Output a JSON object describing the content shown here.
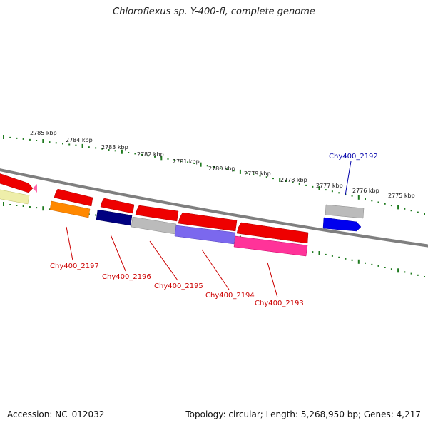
{
  "title": "Chloroflexus sp. Y-400-fl, complete genome",
  "footer": {
    "accession": "Accession: NC_012032",
    "topology": "Topology: circular; Length: 5,268,950 bp; Genes: 4,217"
  },
  "ticks": [
    "2785 kbp",
    "2784 kbp",
    "2783 kbp",
    "2782 kbp",
    "2781 kbp",
    "2780 kbp",
    "2779 kbp",
    "2778 kbp",
    "2777 kbp",
    "2776 kbp",
    "2775 kbp"
  ],
  "gene_labels": [
    {
      "text": "Chy400_2197",
      "color": "#cc0000"
    },
    {
      "text": "Chy400_2196",
      "color": "#cc0000"
    },
    {
      "text": "Chy400_2195",
      "color": "#cc0000"
    },
    {
      "text": "Chy400_2194",
      "color": "#cc0000"
    },
    {
      "text": "Chy400_2193",
      "color": "#cc0000"
    },
    {
      "text": "Chy400_2192",
      "color": "#0000aa"
    }
  ],
  "colors": {
    "backbone": "#7f7f7f",
    "tick_marks": "#1f7a1f",
    "cds_forward": "#ee0000",
    "highlight": "#0000ee"
  }
}
